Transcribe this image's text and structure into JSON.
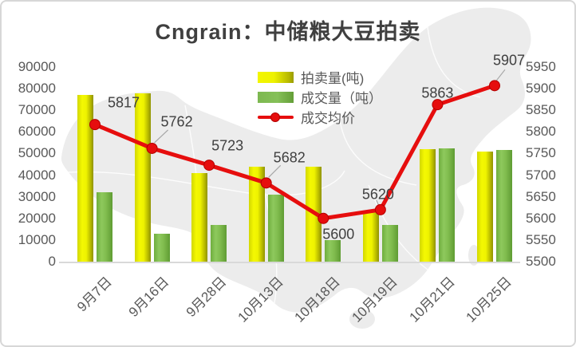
{
  "title": "Cngrain：中储粮大豆拍卖",
  "legend": {
    "auction": "拍卖量(吨)",
    "deal": "成交量（吨）",
    "price": "成交均价"
  },
  "colors": {
    "bar_yellow": "#f2f500",
    "bar_green": "#7db954",
    "line_red": "#e60e0e",
    "title_text": "#3f3f3f",
    "axis_text": "#595959",
    "label_text": "#404040",
    "map_fill": "#ececec",
    "frame_border": "#d7d7d7",
    "leader_gray": "#a6a6a6"
  },
  "chart_data": {
    "type": "combo",
    "title": "Cngrain：中储粮大豆拍卖",
    "categories": [
      "9月7日",
      "9月16日",
      "9月28日",
      "10月13日",
      "10月18日",
      "10月19日",
      "10月21日",
      "10月25日"
    ],
    "series": [
      {
        "name": "拍卖量(吨)",
        "type": "bar",
        "color": "#f2f500",
        "values": [
          77000,
          78000,
          41000,
          44000,
          44000,
          23000,
          52000,
          51000
        ]
      },
      {
        "name": "成交量（吨）",
        "type": "bar",
        "color": "#7db954",
        "values": [
          32000,
          13000,
          17000,
          31000,
          10000,
          17000,
          52500,
          51500
        ]
      },
      {
        "name": "成交均价",
        "type": "line",
        "axis": "right",
        "color": "#e60e0e",
        "labels_shown": true,
        "values": [
          5817,
          5762,
          5723,
          5682,
          5600,
          5620,
          5863,
          5907
        ]
      }
    ],
    "left_axis": {
      "min": 0,
      "max": 90000,
      "step": 10000,
      "ticks": [
        0,
        10000,
        20000,
        30000,
        40000,
        50000,
        60000,
        70000,
        80000,
        90000
      ]
    },
    "right_axis": {
      "min": 5500,
      "max": 5950,
      "step": 50,
      "ticks": [
        5500,
        5550,
        5600,
        5650,
        5700,
        5750,
        5800,
        5850,
        5900,
        5950
      ]
    },
    "grid": false,
    "legend_position": "top-center-inside",
    "x_tick_rotation": 45,
    "background_watermark": "china-map"
  }
}
